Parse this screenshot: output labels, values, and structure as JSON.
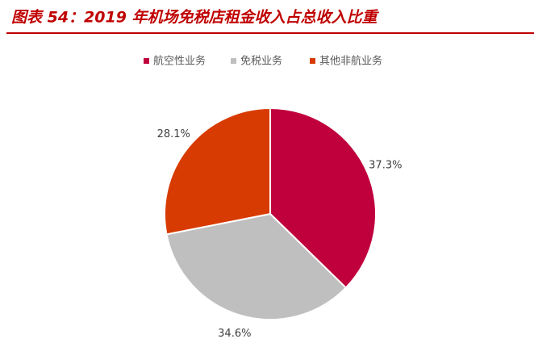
{
  "chart_data": {
    "type": "pie",
    "title": "图表 54：2019 年机场免税店租金收入占总收入比重",
    "categories": [
      "航空性业务",
      "免税业务",
      "其他非航业务"
    ],
    "values": [
      37.3,
      34.6,
      28.1
    ],
    "value_labels": [
      "37.3%",
      "34.6%",
      "28.1%"
    ],
    "colors": [
      "#c0003c",
      "#bfbfbf",
      "#d83b01"
    ],
    "legend": "top"
  }
}
